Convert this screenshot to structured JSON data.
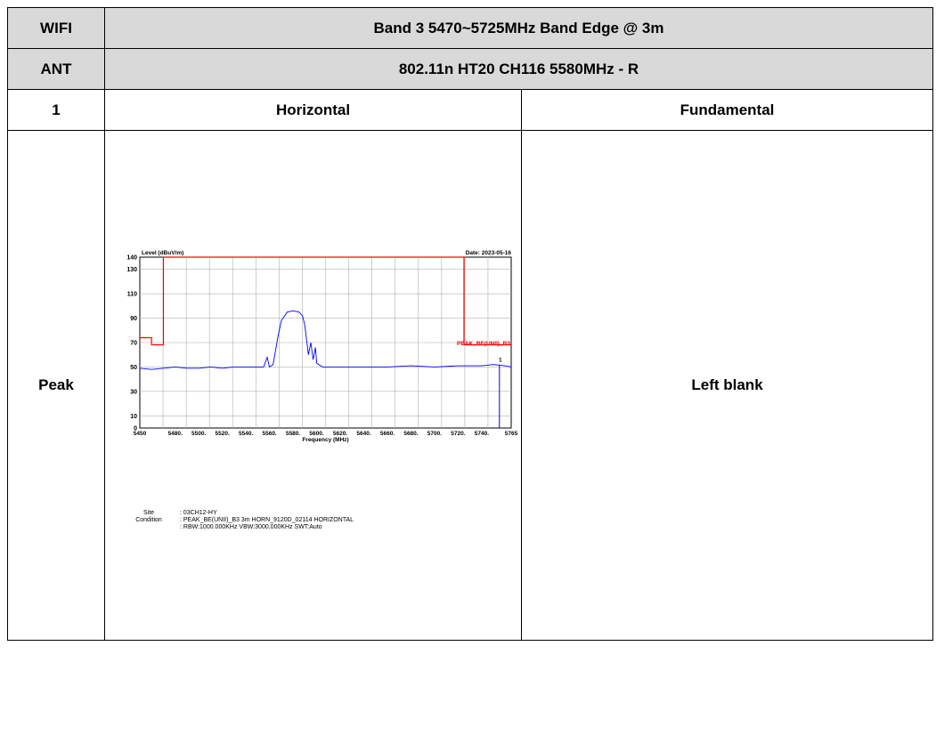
{
  "table": {
    "row1": {
      "col1": "WIFI",
      "col2": "Band 3 5470~5725MHz Band Edge @ 3m"
    },
    "row2": {
      "col1": "ANT",
      "col2": "802.11n HT20 CH116 5580MHz - R"
    },
    "row3": {
      "col1": "1",
      "col2": "Horizontal",
      "col3": "Fundamental"
    },
    "row4": {
      "col1": "Peak",
      "col3": "Left blank"
    }
  },
  "plot_labels": {
    "ylabel": "Level (dBuV/m)",
    "date": "Date: 2023-05-16",
    "xlabel": "Frequency (MHz)",
    "limit_label": "PEAK_BE(UNII)_B3",
    "marker": "1"
  },
  "caption": {
    "site_label": "Site",
    "site_value": ": 03CH12-HY",
    "condition_label": "Condition",
    "condition_value": ": PEAK_BE(UNII)_B3 3m HORN_9120D_02114 HORIZONTAL",
    "settings_value": ": RBW:1000.000KHz VBW:3000.000KHz SWT:Auto"
  },
  "chart_data": {
    "type": "line",
    "xlabel": "Frequency (MHz)",
    "ylabel": "Level (dBuV/m)",
    "xlim": [
      5450,
      5765
    ],
    "ylim": [
      0,
      140
    ],
    "x_ticks": [
      5450,
      5480,
      5500,
      5520,
      5540,
      5560,
      5580,
      5600,
      5620,
      5640,
      5660,
      5680,
      5700,
      5720,
      5740,
      5765
    ],
    "x_tick_labels": [
      "5450",
      "5480.",
      "5500.",
      "5520.",
      "5540.",
      "5560.",
      "5580.",
      "5600.",
      "5620.",
      "5640.",
      "5660.",
      "5680.",
      "5700.",
      "5720.",
      "5740.",
      "5765"
    ],
    "y_tick_labels": [
      "0",
      "10",
      "30",
      "50",
      "70",
      "90",
      "110",
      "130",
      "140"
    ],
    "y_ticks": [
      0,
      10,
      30,
      50,
      70,
      90,
      110,
      130,
      140
    ],
    "grid": true,
    "colors": {
      "trace": "#0000ff",
      "limit": "#ff0000",
      "grid": "#b0b0b0"
    },
    "series": [
      {
        "color": "#0000ff",
        "x": [
          5450,
          5460,
          5470,
          5480,
          5490,
          5500,
          5510,
          5520,
          5530,
          5540,
          5550,
          5555,
          5558,
          5560,
          5563,
          5567,
          5570,
          5575,
          5580,
          5585,
          5588,
          5590,
          5593,
          5595,
          5597,
          5599,
          5600,
          5605,
          5610,
          5620,
          5640,
          5660,
          5680,
          5700,
          5720,
          5740,
          5750,
          5760,
          5765
        ],
        "y": [
          49,
          48,
          49,
          50,
          49,
          49,
          50,
          49,
          50,
          50,
          50,
          50,
          58,
          50,
          52,
          74,
          88,
          95,
          96,
          95,
          92,
          84,
          60,
          70,
          56,
          66,
          53,
          50,
          50,
          50,
          50,
          50,
          51,
          50,
          51,
          51,
          52,
          51,
          50
        ]
      },
      {
        "color": "#ff0000",
        "x": [
          5450,
          5460,
          5460,
          5470,
          5470,
          5725,
          5725,
          5765
        ],
        "y": [
          74,
          74,
          68.2,
          68.2,
          140,
          140,
          68.2,
          68.2
        ]
      }
    ],
    "markers": [
      {
        "x": 5755,
        "y": 52,
        "label": "1"
      }
    ]
  }
}
